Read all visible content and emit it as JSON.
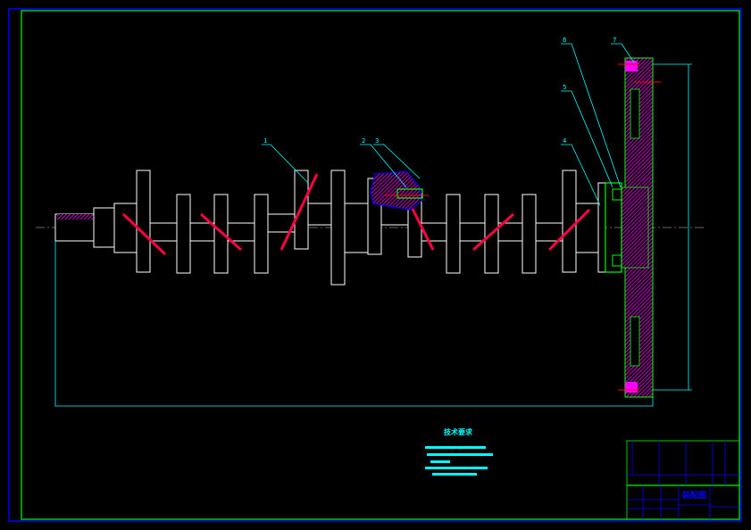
{
  "drawing": {
    "part_labels": [
      "1",
      "2",
      "3",
      "4",
      "5",
      "6",
      "7"
    ],
    "notes_title": "技术要求",
    "title_block": {
      "drawing_type": "装配图"
    },
    "colors": {
      "border_outer": "#0000ff",
      "border_inner": "#00ff00",
      "outline": "#ffffff",
      "hatch": "#ff00ff",
      "leader": "#00ffff",
      "key": "#ff0000"
    }
  }
}
